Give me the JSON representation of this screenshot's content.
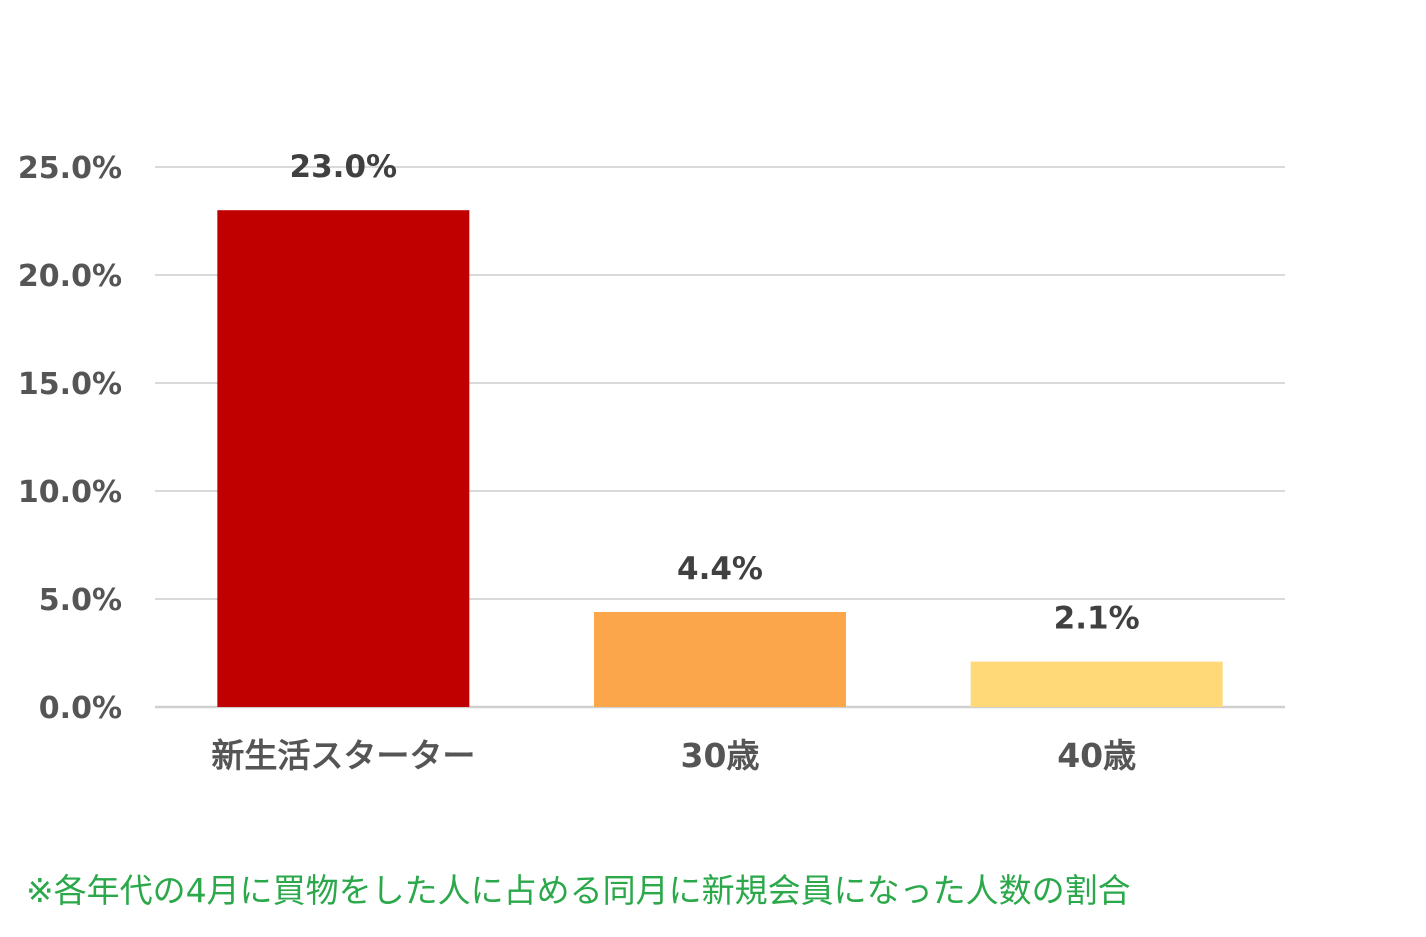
{
  "chart_data": {
    "type": "bar",
    "categories": [
      "新生活スターター",
      "30歳",
      "40歳"
    ],
    "values": [
      23.0,
      4.4,
      2.1
    ],
    "value_labels": [
      "23.0%",
      "4.4%",
      "2.1%"
    ],
    "bar_colors": [
      "#c00000",
      "#fba64a",
      "#ffd978"
    ],
    "yticks": [
      "0.0%",
      "5.0%",
      "10.0%",
      "15.0%",
      "20.0%",
      "25.0%"
    ],
    "ytick_values": [
      0,
      5,
      10,
      15,
      20,
      25
    ],
    "ylim": [
      0,
      25
    ],
    "grid": true,
    "legend": "none",
    "title": "",
    "xlabel": "",
    "ylabel": ""
  },
  "footnote": "※各年代の4月に買物をした人に占める同月に新規会員になった人数の割合",
  "colors": {
    "footnote": "#2aa84a",
    "gridline": "#d9d9d9",
    "tick_text": "#555555",
    "data_label_text": "#404040"
  }
}
